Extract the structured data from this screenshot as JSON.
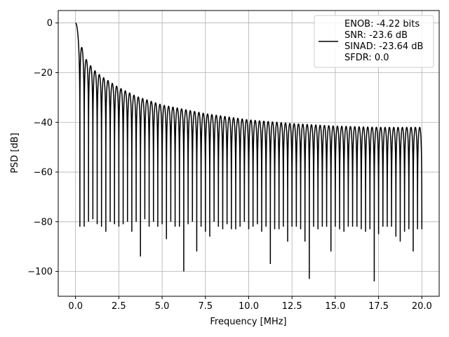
{
  "chart_data": {
    "type": "line",
    "title": "",
    "xlabel": "Frequency [MHz]",
    "ylabel": "PSD [dB]",
    "xlim": [
      -1.0,
      21.0
    ],
    "ylim": [
      -110,
      5
    ],
    "x_ticks": [
      0.0,
      2.5,
      5.0,
      7.5,
      10.0,
      12.5,
      15.0,
      17.5,
      20.0
    ],
    "x_tick_labels": [
      "0.0",
      "2.5",
      "5.0",
      "7.5",
      "10.0",
      "12.5",
      "15.0",
      "17.5",
      "20.0"
    ],
    "y_ticks": [
      0,
      -20,
      -40,
      -60,
      -80,
      -100
    ],
    "y_tick_labels": [
      "0",
      "−20",
      "−40",
      "−60",
      "−80",
      "−100"
    ],
    "grid": true,
    "legend_position": "top-right",
    "line_color": "#000000",
    "series": [
      {
        "name": "ENOB: -4.22 bits\nSNR: -23.6 dB\nSINAD: -23.64 dB\nSFDR: 0.0",
        "lobe_spacing_mhz": 0.25,
        "envelope_peaks": {
          "x": [
            0.0,
            0.5,
            1.0,
            1.5,
            2.5,
            3.5,
            5.0,
            7.5,
            10.0,
            12.5,
            15.0,
            17.5,
            20.0
          ],
          "y": [
            0,
            -13.5,
            -18.5,
            -21.5,
            -26,
            -29.5,
            -33,
            -36.5,
            -39,
            -40.5,
            -41.5,
            -42,
            -42
          ]
        },
        "null_depths": {
          "x": [
            0.25,
            0.5,
            0.75,
            1.0,
            1.25,
            1.5,
            1.75,
            2.0,
            2.25,
            2.5,
            2.75,
            3.0,
            3.25,
            3.5,
            3.75,
            4.0,
            4.25,
            4.5,
            4.75,
            5.0,
            5.25,
            5.5,
            5.75,
            6.0,
            6.25,
            6.5,
            6.75,
            7.0,
            7.25,
            7.5,
            7.75,
            8.0,
            8.25,
            8.5,
            8.75,
            9.0,
            9.25,
            9.5,
            9.75,
            10.0,
            10.25,
            10.5,
            10.75,
            11.0,
            11.25,
            11.5,
            11.75,
            12.0,
            12.25,
            12.5,
            12.75,
            13.0,
            13.25,
            13.5,
            13.75,
            14.0,
            14.25,
            14.5,
            14.75,
            15.0,
            15.25,
            15.5,
            15.75,
            16.0,
            16.25,
            16.5,
            16.75,
            17.0,
            17.25,
            17.5,
            17.75,
            18.0,
            18.25,
            18.5,
            18.75,
            19.0,
            19.25,
            19.5,
            19.75
          ],
          "y": [
            -82,
            -82,
            -80,
            -79,
            -81,
            -82,
            -84,
            -80,
            -81,
            -82,
            -81,
            -80,
            -84,
            -80,
            -94,
            -79,
            -82,
            -80,
            -82,
            -81,
            -87,
            -80,
            -82,
            -82,
            -100,
            -81,
            -80,
            -92,
            -82,
            -84,
            -86,
            -80,
            -82,
            -83,
            -81,
            -83,
            -83,
            -82,
            -80,
            -83,
            -82,
            -81,
            -84,
            -82,
            -97,
            -83,
            -83,
            -82,
            -88,
            -82,
            -82,
            -83,
            -88,
            -103,
            -82,
            -83,
            -82,
            -82,
            -92,
            -82,
            -83,
            -84,
            -82,
            -82,
            -82,
            -83,
            -84,
            -83,
            -104,
            -85,
            -82,
            -82,
            -82,
            -86,
            -88,
            -84,
            -83,
            -92,
            -83
          ]
        },
        "end_value": {
          "x": 20.0,
          "y": -76
        }
      }
    ]
  }
}
